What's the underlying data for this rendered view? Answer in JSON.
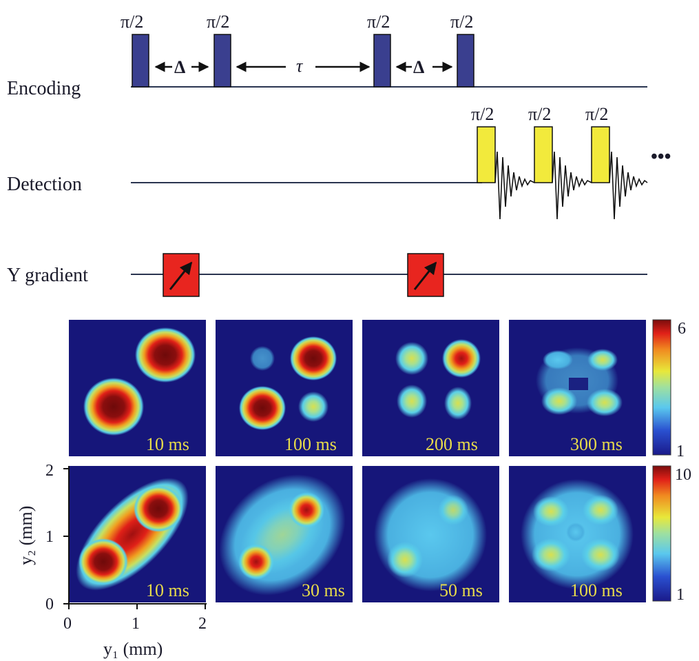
{
  "sequence": {
    "rows": {
      "encoding": "Encoding",
      "detection": "Detection",
      "gradient": "Y gradient"
    },
    "pulse_label": "π/2",
    "delta_label": "Δ",
    "tau_label": "τ",
    "ellipsis": "•••",
    "colors": {
      "encoding_pulse": "#3a3f8f",
      "detection_pulse": "#f2ea3c",
      "gradient_pulse": "#e8251f"
    }
  },
  "maps": {
    "top_row_times": [
      "10 ms",
      "100 ms",
      "200 ms",
      "300 ms"
    ],
    "bottom_row_times": [
      "10 ms",
      "30 ms",
      "50 ms",
      "100 ms"
    ],
    "colorbar_top": {
      "max": "6",
      "min": "1"
    },
    "colorbar_bottom": {
      "max": "10",
      "min": "1"
    },
    "x_axis": {
      "label": "y₁ (mm)",
      "ticks": [
        "0",
        "1",
        "2"
      ]
    },
    "y_axis": {
      "label": "y₂ (mm)",
      "ticks": [
        "0",
        "1",
        "2"
      ]
    }
  }
}
